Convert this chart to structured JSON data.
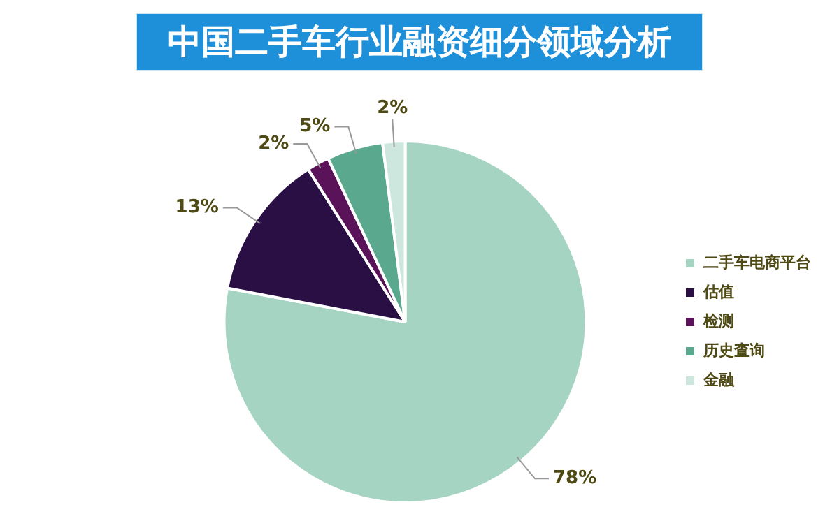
{
  "chart_data": {
    "type": "pie",
    "title": "中国二手车行业融资细分领域分析",
    "categories": [
      "二手车电商平台",
      "估值",
      "检测",
      "历史查询",
      "金融"
    ],
    "values": [
      78,
      13,
      2,
      5,
      2
    ],
    "colors": [
      "#a6d4c3",
      "#2a0f45",
      "#5a1258",
      "#5aa88e",
      "#cde6de"
    ],
    "value_labels": [
      "78%",
      "13%",
      "2%",
      "5%",
      "2%"
    ],
    "legend": "right"
  }
}
